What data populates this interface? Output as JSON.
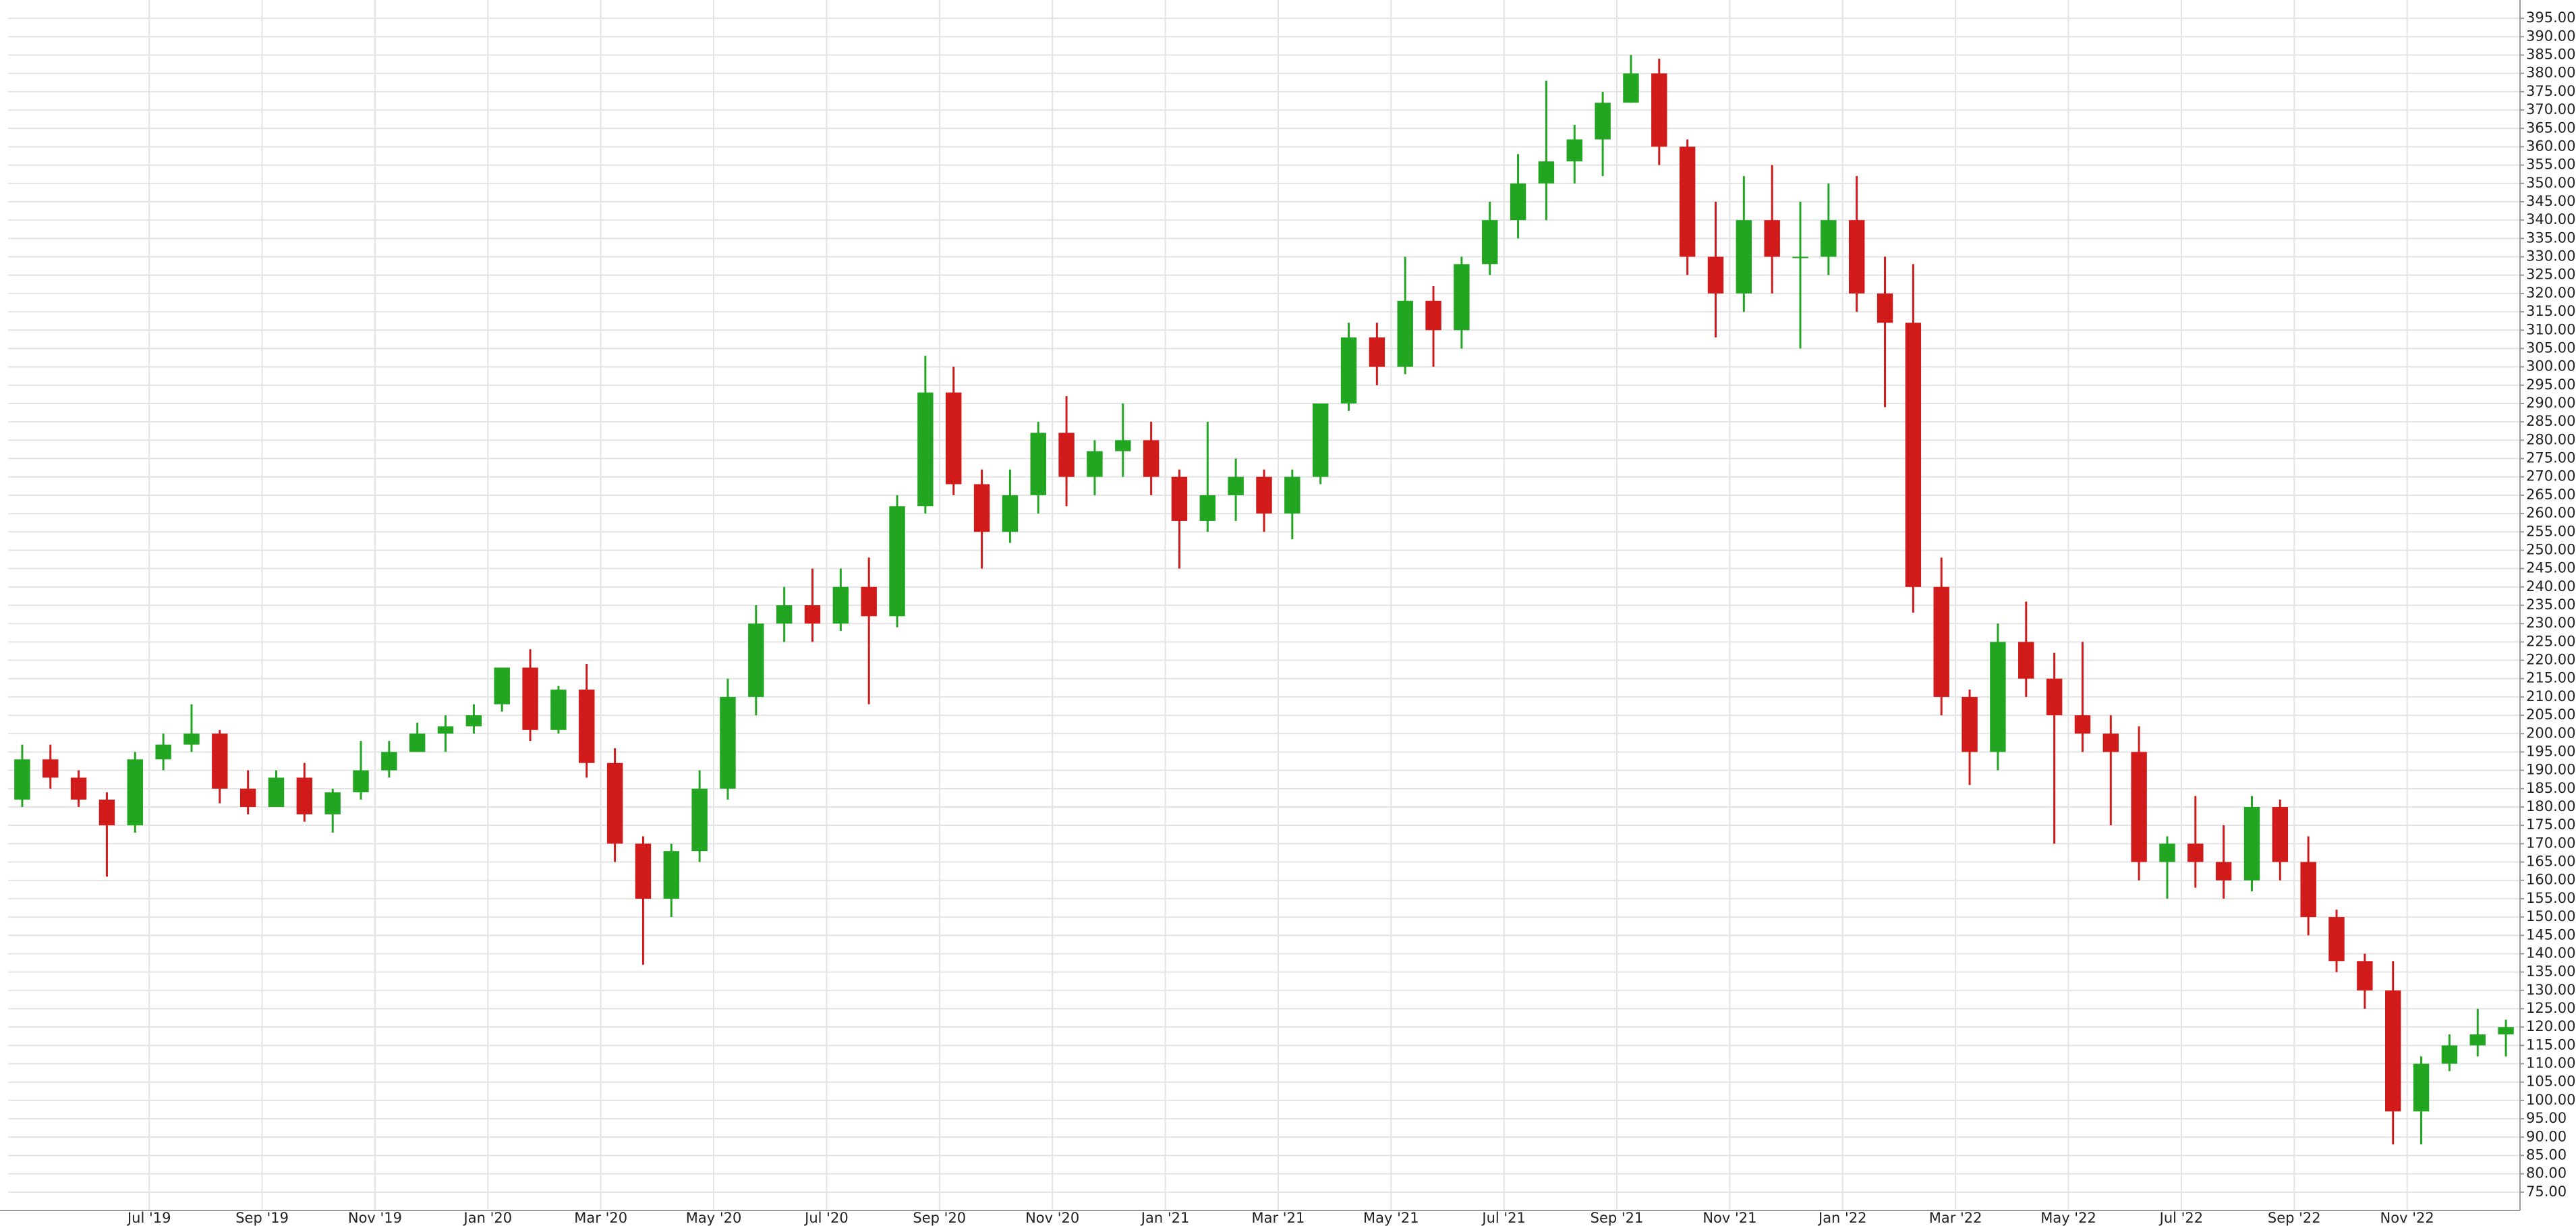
{
  "chart_data": {
    "type": "candlestick",
    "categories": [
      null,
      null,
      null,
      null,
      null,
      "Jul '19",
      null,
      null,
      null,
      "Sep '19",
      null,
      null,
      null,
      "Nov '19",
      null,
      null,
      null,
      "Jan '20",
      null,
      null,
      null,
      "Mar '20",
      null,
      null,
      null,
      "May '20",
      null,
      null,
      null,
      "Jul '20",
      null,
      null,
      null,
      "Sep '20",
      null,
      null,
      null,
      "Nov '20",
      null,
      null,
      null,
      "Jan '21",
      null,
      null,
      null,
      "Mar '21",
      null,
      null,
      null,
      "May '21",
      null,
      null,
      null,
      "Jul '21",
      null,
      null,
      null,
      "Sep '21",
      null,
      null,
      null,
      "Nov '21",
      null,
      null,
      null,
      "Jan '22",
      null,
      null,
      null,
      "Mar '22",
      null,
      null,
      null,
      "May '22",
      null,
      null,
      null,
      "Jul '22",
      null,
      null,
      null,
      "Sep '22",
      null,
      null,
      null,
      "Nov '22",
      null,
      null,
      null
    ],
    "open": [
      182,
      193,
      188,
      182,
      175,
      193,
      197,
      200,
      185,
      180,
      188,
      178,
      184,
      190,
      195,
      200,
      202,
      208,
      218,
      201,
      212,
      192,
      170,
      155,
      168,
      185,
      210,
      230,
      235,
      230,
      240,
      232,
      262,
      293,
      268,
      255,
      265,
      282,
      270,
      277,
      280,
      270,
      258,
      265,
      270,
      260,
      270,
      290,
      308,
      300,
      318,
      310,
      328,
      340,
      350,
      356,
      362,
      372,
      380,
      360,
      330,
      320,
      340,
      330,
      330,
      340,
      320,
      312,
      240,
      210,
      195,
      225,
      215,
      205,
      200,
      195,
      165,
      170,
      165,
      160,
      180,
      165,
      150,
      138,
      130,
      97,
      110,
      115,
      118
    ],
    "high": [
      197,
      197,
      190,
      184,
      195,
      200,
      208,
      201,
      190,
      190,
      192,
      185,
      198,
      198,
      203,
      205,
      208,
      218,
      223,
      213,
      219,
      196,
      172,
      170,
      190,
      215,
      235,
      240,
      245,
      245,
      248,
      265,
      303,
      300,
      272,
      272,
      285,
      292,
      280,
      290,
      285,
      272,
      285,
      275,
      272,
      272,
      290,
      312,
      312,
      330,
      322,
      330,
      345,
      358,
      378,
      366,
      375,
      385,
      384,
      362,
      345,
      352,
      355,
      345,
      350,
      352,
      330,
      328,
      248,
      212,
      230,
      236,
      222,
      225,
      205,
      202,
      172,
      183,
      175,
      183,
      182,
      172,
      152,
      140,
      138,
      112,
      118,
      125,
      122
    ],
    "low": [
      180,
      185,
      180,
      161,
      173,
      190,
      195,
      181,
      178,
      180,
      176,
      173,
      182,
      188,
      195,
      195,
      200,
      206,
      198,
      200,
      188,
      165,
      137,
      150,
      165,
      182,
      205,
      225,
      225,
      228,
      208,
      229,
      260,
      265,
      245,
      252,
      260,
      262,
      265,
      270,
      265,
      245,
      255,
      258,
      255,
      253,
      268,
      288,
      295,
      298,
      300,
      305,
      325,
      335,
      340,
      350,
      352,
      372,
      355,
      325,
      308,
      315,
      320,
      305,
      325,
      315,
      289,
      233,
      205,
      186,
      190,
      210,
      170,
      195,
      175,
      160,
      155,
      158,
      155,
      157,
      160,
      145,
      135,
      125,
      88,
      88,
      108,
      112,
      112
    ],
    "close": [
      193,
      188,
      182,
      175,
      193,
      197,
      200,
      185,
      180,
      188,
      178,
      184,
      190,
      195,
      200,
      202,
      205,
      218,
      201,
      212,
      192,
      170,
      155,
      168,
      185,
      210,
      230,
      235,
      230,
      240,
      232,
      262,
      293,
      268,
      255,
      265,
      282,
      270,
      277,
      280,
      270,
      258,
      265,
      270,
      260,
      270,
      290,
      308,
      300,
      318,
      310,
      328,
      340,
      350,
      356,
      362,
      372,
      380,
      360,
      330,
      320,
      340,
      330,
      330,
      340,
      320,
      312,
      240,
      210,
      195,
      225,
      215,
      205,
      200,
      195,
      165,
      170,
      165,
      160,
      180,
      165,
      150,
      138,
      130,
      97,
      110,
      115,
      118,
      120
    ],
    "up_color": "#22a622",
    "down_color": "#d11a1a",
    "ylim": [
      70,
      400
    ],
    "yticks": [
      {
        "value": 75,
        "label": "75.00"
      },
      {
        "value": 80,
        "label": "80.00"
      },
      {
        "value": 85,
        "label": "85.00"
      },
      {
        "value": 90,
        "label": "90.00"
      },
      {
        "value": 95,
        "label": "95.00"
      },
      {
        "value": 100,
        "label": "100.00"
      },
      {
        "value": 105,
        "label": "105.00"
      },
      {
        "value": 110,
        "label": "110.00"
      },
      {
        "value": 115,
        "label": "115.00"
      },
      {
        "value": 120,
        "label": "120.00"
      },
      {
        "value": 125,
        "label": "125.00"
      },
      {
        "value": 130,
        "label": "130.00"
      },
      {
        "value": 135,
        "label": "135.00"
      },
      {
        "value": 140,
        "label": "140.00"
      },
      {
        "value": 145,
        "label": "145.00"
      },
      {
        "value": 150,
        "label": "150.00"
      },
      {
        "value": 155,
        "label": "155.00"
      },
      {
        "value": 160,
        "label": "160.00"
      },
      {
        "value": 165,
        "label": "165.00"
      },
      {
        "value": 170,
        "label": "170.00"
      },
      {
        "value": 175,
        "label": "175.00"
      },
      {
        "value": 180,
        "label": "180.00"
      },
      {
        "value": 185,
        "label": "185.00"
      },
      {
        "value": 190,
        "label": "190.00"
      },
      {
        "value": 195,
        "label": "195.00"
      },
      {
        "value": 200,
        "label": "200.00"
      },
      {
        "value": 205,
        "label": "205.00"
      },
      {
        "value": 210,
        "label": "210.00"
      },
      {
        "value": 215,
        "label": "215.00"
      },
      {
        "value": 220,
        "label": "220.00"
      },
      {
        "value": 225,
        "label": "225.00"
      },
      {
        "value": 230,
        "label": "230.00"
      },
      {
        "value": 235,
        "label": "235.00"
      },
      {
        "value": 240,
        "label": "240.00"
      },
      {
        "value": 245,
        "label": "245.00"
      },
      {
        "value": 250,
        "label": "250.00"
      },
      {
        "value": 255,
        "label": "255.00"
      },
      {
        "value": 260,
        "label": "260.00"
      },
      {
        "value": 265,
        "label": "265.00"
      },
      {
        "value": 270,
        "label": "270.00"
      },
      {
        "value": 275,
        "label": "275.00"
      },
      {
        "value": 280,
        "label": "280.00"
      },
      {
        "value": 285,
        "label": "285.00"
      },
      {
        "value": 290,
        "label": "290.00"
      },
      {
        "value": 295,
        "label": "295.00"
      },
      {
        "value": 300,
        "label": "300.00"
      },
      {
        "value": 305,
        "label": "305.00"
      },
      {
        "value": 310,
        "label": "310.00"
      },
      {
        "value": 315,
        "label": "315.00"
      },
      {
        "value": 320,
        "label": "320.00"
      },
      {
        "value": 325,
        "label": "325.00"
      },
      {
        "value": 330,
        "label": "330.00"
      },
      {
        "value": 335,
        "label": "335.00"
      },
      {
        "value": 340,
        "label": "340.00"
      },
      {
        "value": 345,
        "label": "345.00"
      },
      {
        "value": 350,
        "label": "350.00"
      },
      {
        "value": 355,
        "label": "355.00"
      },
      {
        "value": 360,
        "label": "360.00"
      },
      {
        "value": 365,
        "label": "365.00"
      },
      {
        "value": 370,
        "label": "370.00"
      },
      {
        "value": 375,
        "label": "375.00"
      },
      {
        "value": 380,
        "label": "380.00"
      },
      {
        "value": 385,
        "label": "385.00"
      },
      {
        "value": 390,
        "label": "390.00"
      },
      {
        "value": 395,
        "label": "395.00"
      }
    ],
    "grid": true
  }
}
